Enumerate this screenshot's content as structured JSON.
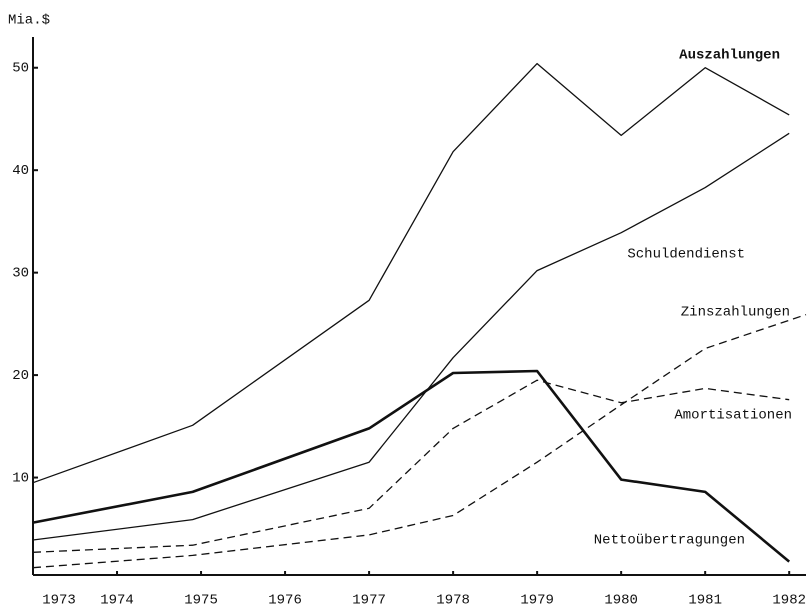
{
  "chart_data": {
    "type": "line",
    "y_label": "Mia.$",
    "xlim": [
      1973,
      1982.2
    ],
    "xticks": [
      1973,
      1974,
      1975,
      1976,
      1977,
      1978,
      1979,
      1980,
      1981,
      1982
    ],
    "ylim": [
      0,
      53
    ],
    "yticks": [
      10,
      20,
      30,
      40,
      50
    ],
    "series": [
      {
        "name": "Auszahlungen",
        "color": "#111111",
        "dashed": false,
        "width": 1.3,
        "x": [
          1973,
          1974.9,
          1977,
          1978,
          1979,
          1980,
          1981,
          1982
        ],
        "values": [
          9.5,
          15.1,
          27.3,
          41.8,
          50.4,
          43.4,
          50,
          45.4
        ]
      },
      {
        "name": "Schuldendienst",
        "color": "#111111",
        "dashed": false,
        "width": 1.3,
        "x": [
          1973,
          1974.9,
          1977,
          1978,
          1979,
          1980,
          1981,
          1982
        ],
        "values": [
          3.9,
          5.9,
          11.5,
          21.7,
          30.2,
          33.9,
          38.3,
          43.6
        ]
      },
      {
        "name": "Zinszahlungen",
        "color": "#111111",
        "dashed": true,
        "width": 1.3,
        "x": [
          1973,
          1974.9,
          1977,
          1978,
          1979,
          1980,
          1981,
          1982.2
        ],
        "values": [
          1.2,
          2.4,
          4.4,
          6.3,
          11.5,
          17.1,
          22.6,
          25.9
        ]
      },
      {
        "name": "Amortisationen",
        "color": "#111111",
        "dashed": true,
        "width": 1.3,
        "x": [
          1973,
          1974.9,
          1977,
          1978,
          1979,
          1980,
          1981,
          1982
        ],
        "values": [
          2.7,
          3.4,
          7.0,
          14.8,
          19.5,
          17.3,
          18.7,
          17.6
        ]
      },
      {
        "name": "Nettoübertragungen",
        "color": "#111111",
        "dashed": false,
        "width": 2.6,
        "x": [
          1973,
          1974.9,
          1977,
          1978,
          1979,
          1980,
          1981,
          1982
        ],
        "values": [
          5.6,
          8.6,
          14.8,
          20.2,
          20.4,
          9.8,
          8.6,
          1.8
        ]
      }
    ]
  }
}
